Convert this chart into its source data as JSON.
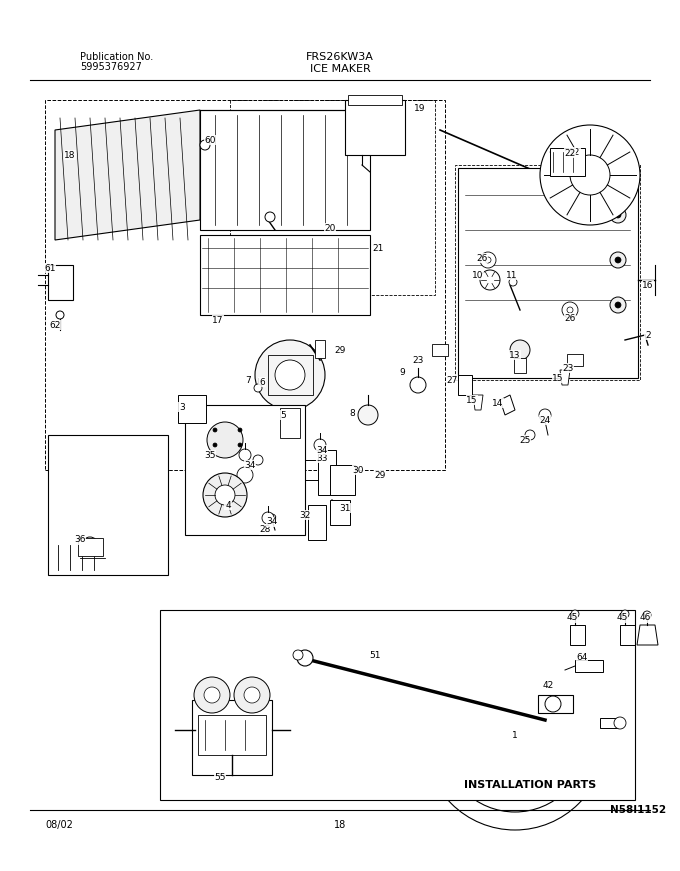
{
  "title_model": "FRS26KW3A",
  "title_section": "ICE MAKER",
  "pub_label": "Publication No.",
  "pub_number": "5995376927",
  "date_code": "08/02",
  "page_number": "18",
  "diagram_id": "N58I1152",
  "install_parts_label": "INSTALLATION PARTS",
  "bg_color": "#ffffff",
  "line_color": "#000000",
  "text_color": "#000000",
  "fig_width": 6.8,
  "fig_height": 8.71,
  "dpi": 100
}
